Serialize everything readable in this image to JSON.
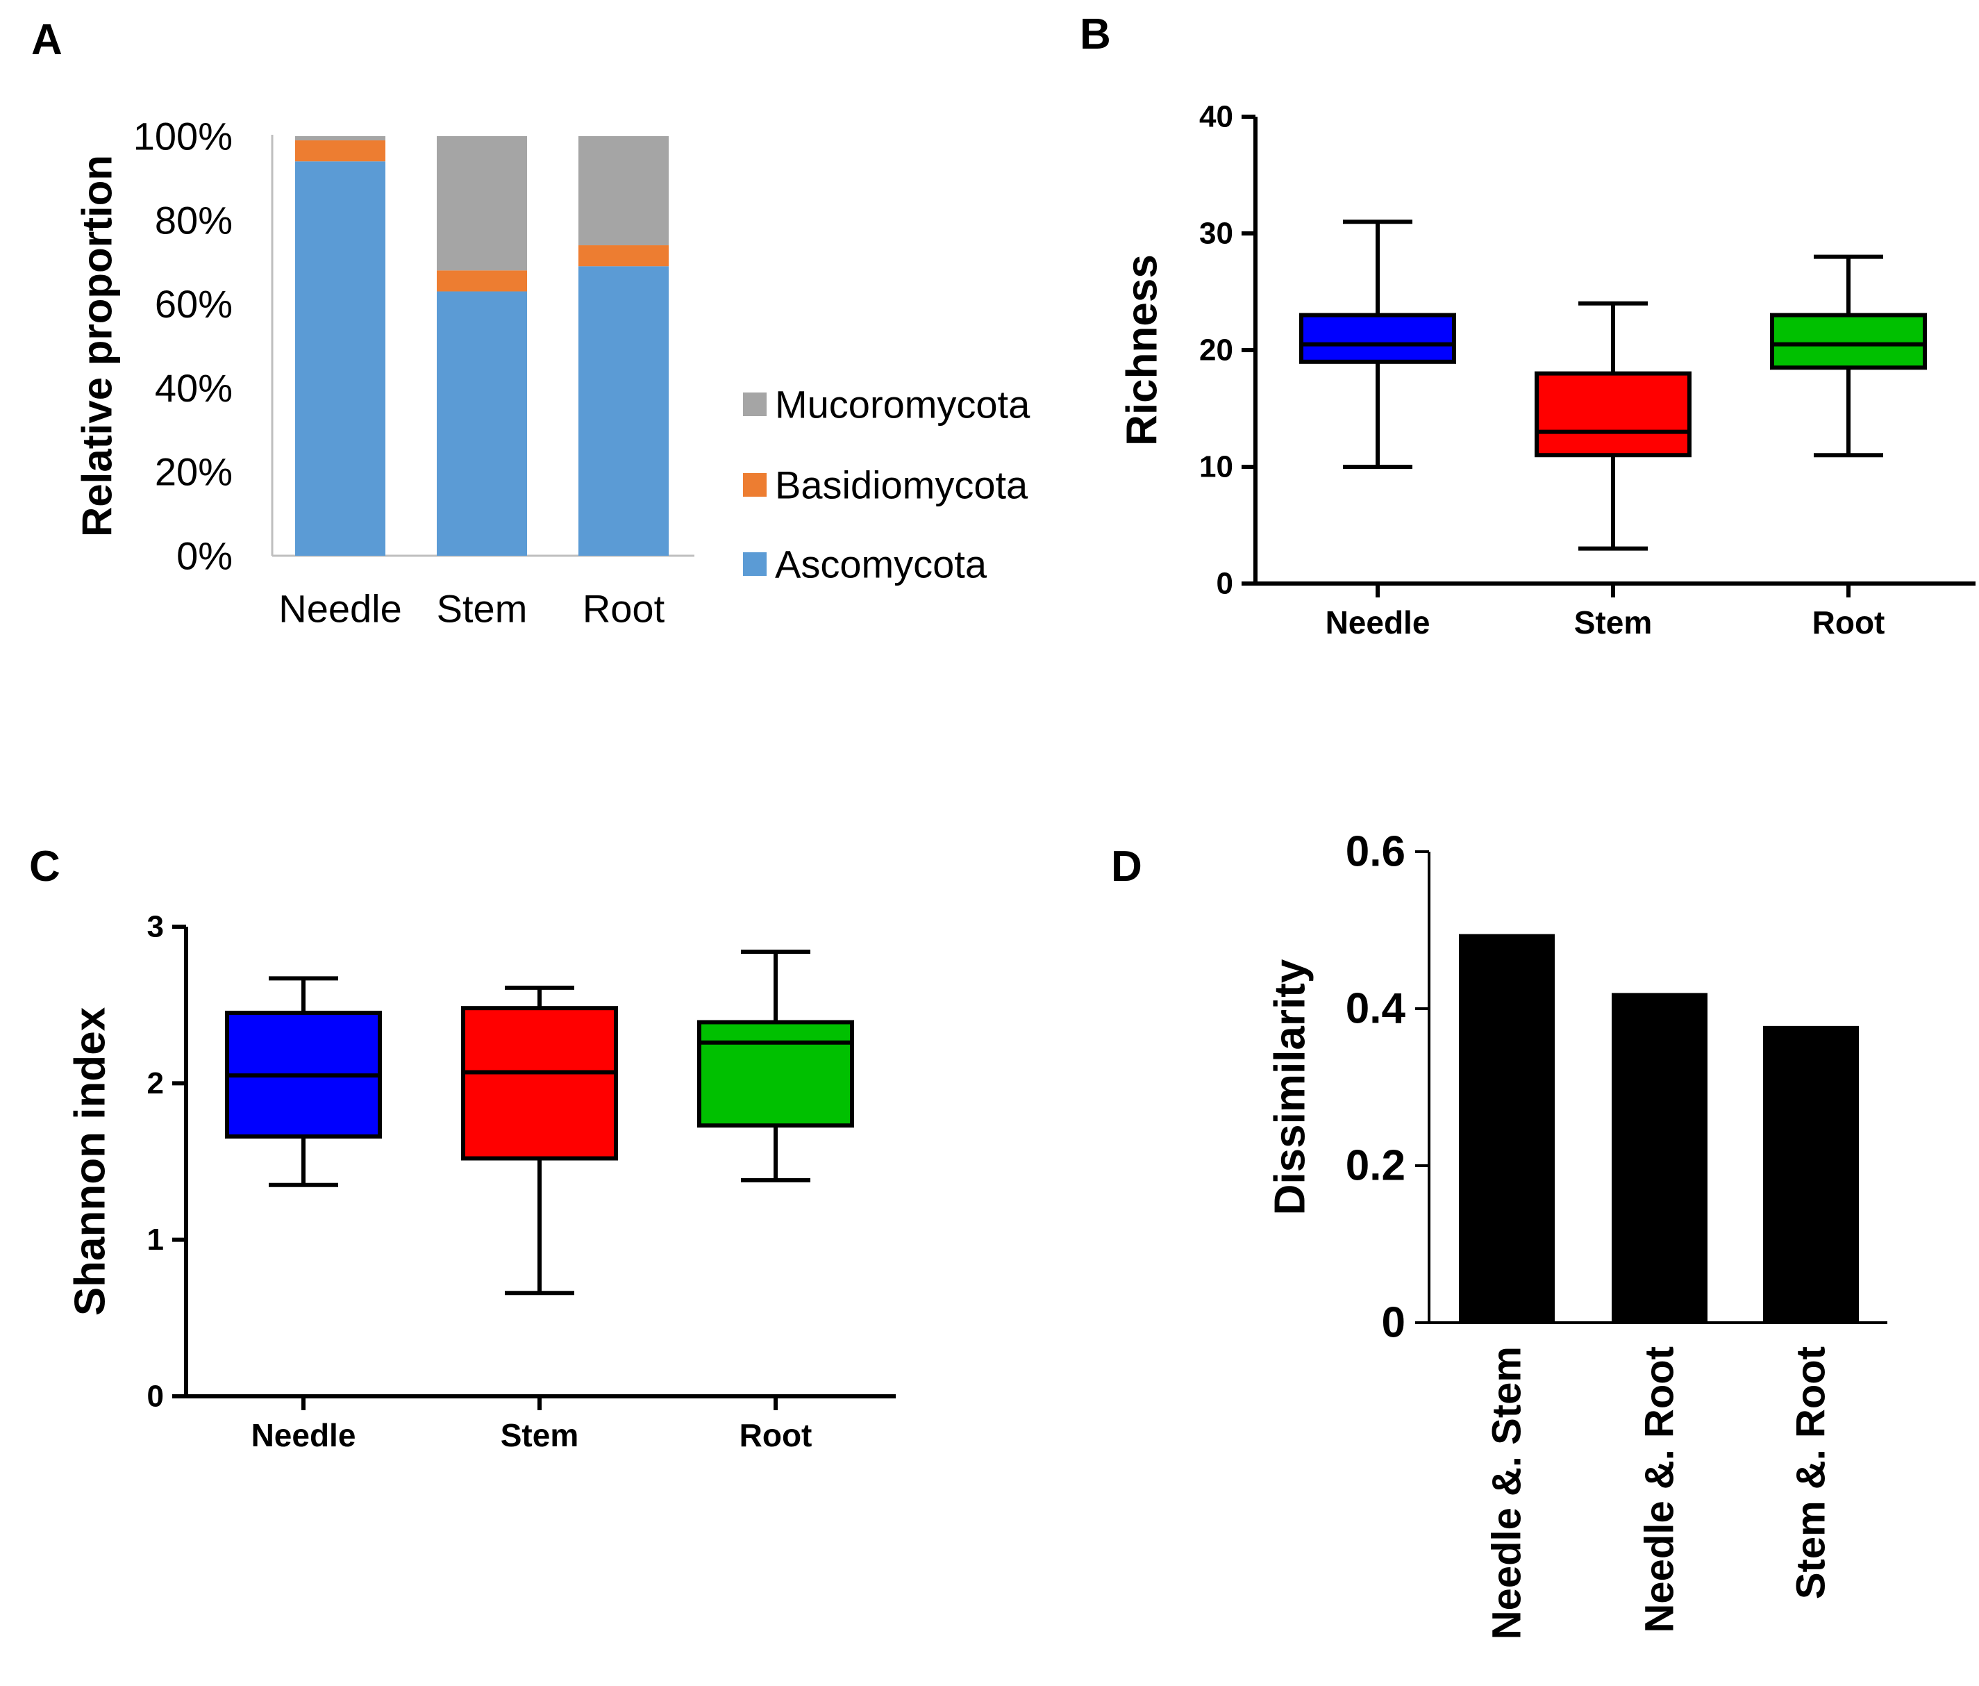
{
  "panels": {
    "a": "A",
    "b": "B",
    "c": "C",
    "d": "D"
  },
  "chart_data": [
    {
      "id": "A",
      "type": "bar",
      "stacked": true,
      "categories": [
        "Needle",
        "Stem",
        "Root"
      ],
      "series": [
        {
          "name": "Ascomycota",
          "color": "#5b9bd5",
          "values": [
            94,
            63,
            69
          ]
        },
        {
          "name": "Basidiomycota",
          "color": "#ed7d31",
          "values": [
            5,
            5,
            5
          ]
        },
        {
          "name": "Mucoromycota",
          "color": "#a5a5a5",
          "values": [
            1,
            32,
            26
          ]
        }
      ],
      "legend_order": [
        "Mucoromycota",
        "Basidiomycota",
        "Ascomycota"
      ],
      "yticks": [
        "0%",
        "20%",
        "40%",
        "60%",
        "80%",
        "100%"
      ],
      "ylim": [
        0,
        100
      ],
      "ylabel": "Relative proportion",
      "xlabel": "",
      "legend": "right"
    },
    {
      "id": "B",
      "type": "box",
      "categories": [
        "Needle",
        "Stem",
        "Root"
      ],
      "colors": [
        "#0000ff",
        "#ff0000",
        "#00c000"
      ],
      "boxes": [
        {
          "min": 10,
          "q1": 19,
          "median": 20.5,
          "q3": 23,
          "max": 31
        },
        {
          "min": 3,
          "q1": 11,
          "median": 13,
          "q3": 18,
          "max": 24
        },
        {
          "min": 11,
          "q1": 18.5,
          "median": 20.5,
          "q3": 23,
          "max": 28
        }
      ],
      "ylim": [
        0,
        40
      ],
      "yticks": [
        "0",
        "10",
        "20",
        "30",
        "40"
      ],
      "ylabel": "Richness",
      "xlabel": ""
    },
    {
      "id": "C",
      "type": "box",
      "categories": [
        "Needle",
        "Stem",
        "Root"
      ],
      "colors": [
        "#0000ff",
        "#ff0000",
        "#00c000"
      ],
      "boxes": [
        {
          "min": 1.35,
          "q1": 1.66,
          "median": 2.05,
          "q3": 2.45,
          "max": 2.67
        },
        {
          "min": 0.66,
          "q1": 1.52,
          "median": 2.07,
          "q3": 2.48,
          "max": 2.61
        },
        {
          "min": 1.38,
          "q1": 1.73,
          "median": 2.26,
          "q3": 2.39,
          "max": 2.84
        }
      ],
      "ylim": [
        0,
        3
      ],
      "yticks": [
        "0",
        "1",
        "2",
        "3"
      ],
      "ylabel": "Shannon index",
      "xlabel": ""
    },
    {
      "id": "D",
      "type": "bar",
      "categories": [
        "Needle &. Stem",
        "Needle &. Root",
        "Stem &. Root"
      ],
      "values": [
        0.495,
        0.42,
        0.378
      ],
      "color": "#000000",
      "ylim": [
        0,
        0.6
      ],
      "yticks": [
        "0",
        "0.2",
        "0.4",
        "0.6"
      ],
      "ylabel": "Dissimilarity",
      "xlabel": ""
    }
  ]
}
